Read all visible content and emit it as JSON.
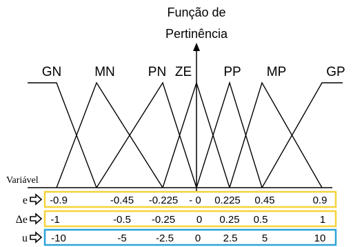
{
  "axis_title_line1": "Função de",
  "axis_title_line2": "Pertinência",
  "variable_label": "Variável",
  "sets": [
    {
      "label": "GN",
      "a": -0.9,
      "b": -0.9,
      "c": -0.45
    },
    {
      "label": "MN",
      "a": -0.9,
      "b": -0.45,
      "c": -0.225
    },
    {
      "label": "PN",
      "a": -0.45,
      "b": -0.225,
      "c": 0
    },
    {
      "label": "ZE",
      "a": -0.225,
      "b": 0,
      "c": 0.225
    },
    {
      "label": "PP",
      "a": 0,
      "b": 0.225,
      "c": 0.45
    },
    {
      "label": "MP",
      "a": 0.225,
      "b": 0.45,
      "c": 0.9
    },
    {
      "label": "GP",
      "a": 0.45,
      "b": 0.9,
      "c": 0.9
    }
  ],
  "rows": [
    {
      "name": "e",
      "border_color": "#f5d33b",
      "values": [
        "-0.9",
        "-0.45",
        "-0.225",
        "- 0",
        "0.225",
        "0.45",
        "0.9"
      ]
    },
    {
      "name": "Δe",
      "border_color": "#f5d33b",
      "values": [
        "-1",
        "-0.5",
        "-0.25",
        "0",
        "0.25",
        "0.5",
        "1"
      ]
    },
    {
      "name": "u",
      "border_color": "#2aa3d8",
      "values": [
        "-10",
        "-5",
        "-2.5",
        "0",
        "2.5",
        "5",
        "10"
      ]
    }
  ],
  "colors": {
    "lines": "#000000",
    "arrow_icon": "#000000"
  },
  "icons": {
    "row_arrow": "right-arrow-icon"
  }
}
